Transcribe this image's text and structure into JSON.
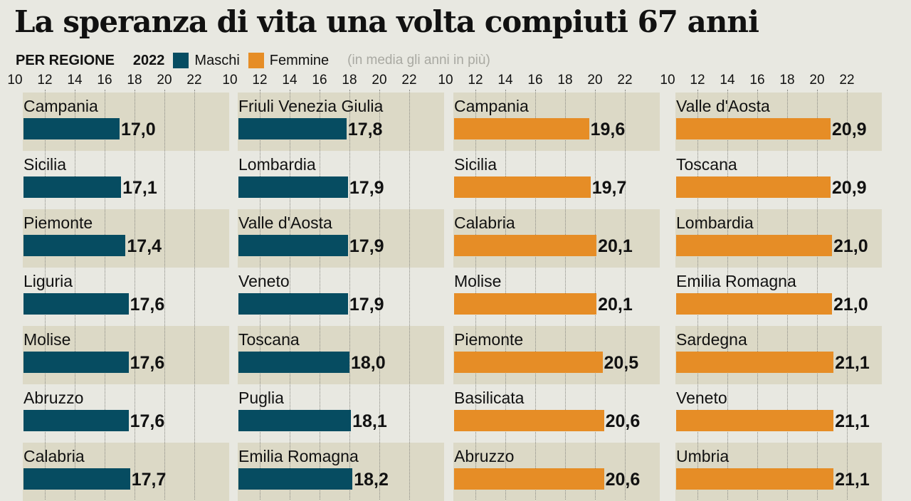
{
  "title": "La speranza di vita una volta compiuti 67 anni",
  "subtitle": {
    "region": "PER REGIONE",
    "year": "2022",
    "legend_male": "Maschi",
    "legend_female": "Femmine",
    "note": "(in media gli anni in più)"
  },
  "colors": {
    "male": "#064c61",
    "female": "#e68d26"
  },
  "chart_data": [
    {
      "type": "bar",
      "orientation": "horizontal",
      "series": "Maschi",
      "ticks": [
        "10",
        "12",
        "14",
        "16",
        "18",
        "20",
        "22"
      ],
      "xlim": [
        10,
        22
      ],
      "categories": [
        "Campania",
        "Sicilia",
        "Piemonte",
        "Liguria",
        "Molise",
        "Abruzzo",
        "Calabria"
      ],
      "values": [
        17.0,
        17.1,
        17.4,
        17.6,
        17.6,
        17.6,
        17.7
      ],
      "labels": [
        "17,0",
        "17,1",
        "17,4",
        "17,6",
        "17,6",
        "17,6",
        "17,7"
      ]
    },
    {
      "type": "bar",
      "orientation": "horizontal",
      "series": "Maschi",
      "ticks": [
        "10",
        "12",
        "14",
        "16",
        "18",
        "20",
        "22"
      ],
      "xlim": [
        10,
        22
      ],
      "categories": [
        "Friuli Venezia Giulia",
        "Lombardia",
        "Valle d'Aosta",
        "Veneto",
        "Toscana",
        "Puglia",
        "Emilia Romagna"
      ],
      "values": [
        17.8,
        17.9,
        17.9,
        17.9,
        18.0,
        18.1,
        18.2
      ],
      "labels": [
        "17,8",
        "17,9",
        "17,9",
        "17,9",
        "18,0",
        "18,1",
        "18,2"
      ]
    },
    {
      "type": "bar",
      "orientation": "horizontal",
      "series": "Femmine",
      "ticks": [
        "10",
        "12",
        "14",
        "16",
        "18",
        "20",
        "22"
      ],
      "xlim": [
        10,
        22
      ],
      "categories": [
        "Campania",
        "Sicilia",
        "Calabria",
        "Molise",
        "Piemonte",
        "Basilicata",
        "Abruzzo"
      ],
      "values": [
        19.6,
        19.7,
        20.1,
        20.1,
        20.5,
        20.6,
        20.6
      ],
      "labels": [
        "19,6",
        "19,7",
        "20,1",
        "20,1",
        "20,5",
        "20,6",
        "20,6"
      ]
    },
    {
      "type": "bar",
      "orientation": "horizontal",
      "series": "Femmine",
      "ticks": [
        "10",
        "12",
        "14",
        "16",
        "18",
        "20",
        "22"
      ],
      "xlim": [
        10,
        22
      ],
      "categories": [
        "Valle d'Aosta",
        "Toscana",
        "Lombardia",
        "Emilia Romagna",
        "Sardegna",
        "Veneto",
        "Umbria"
      ],
      "values": [
        20.9,
        20.9,
        21.0,
        21.0,
        21.1,
        21.1,
        21.1
      ],
      "labels": [
        "20,9",
        "20,9",
        "21,0",
        "21,0",
        "21,1",
        "21,1",
        "21,1"
      ]
    }
  ]
}
